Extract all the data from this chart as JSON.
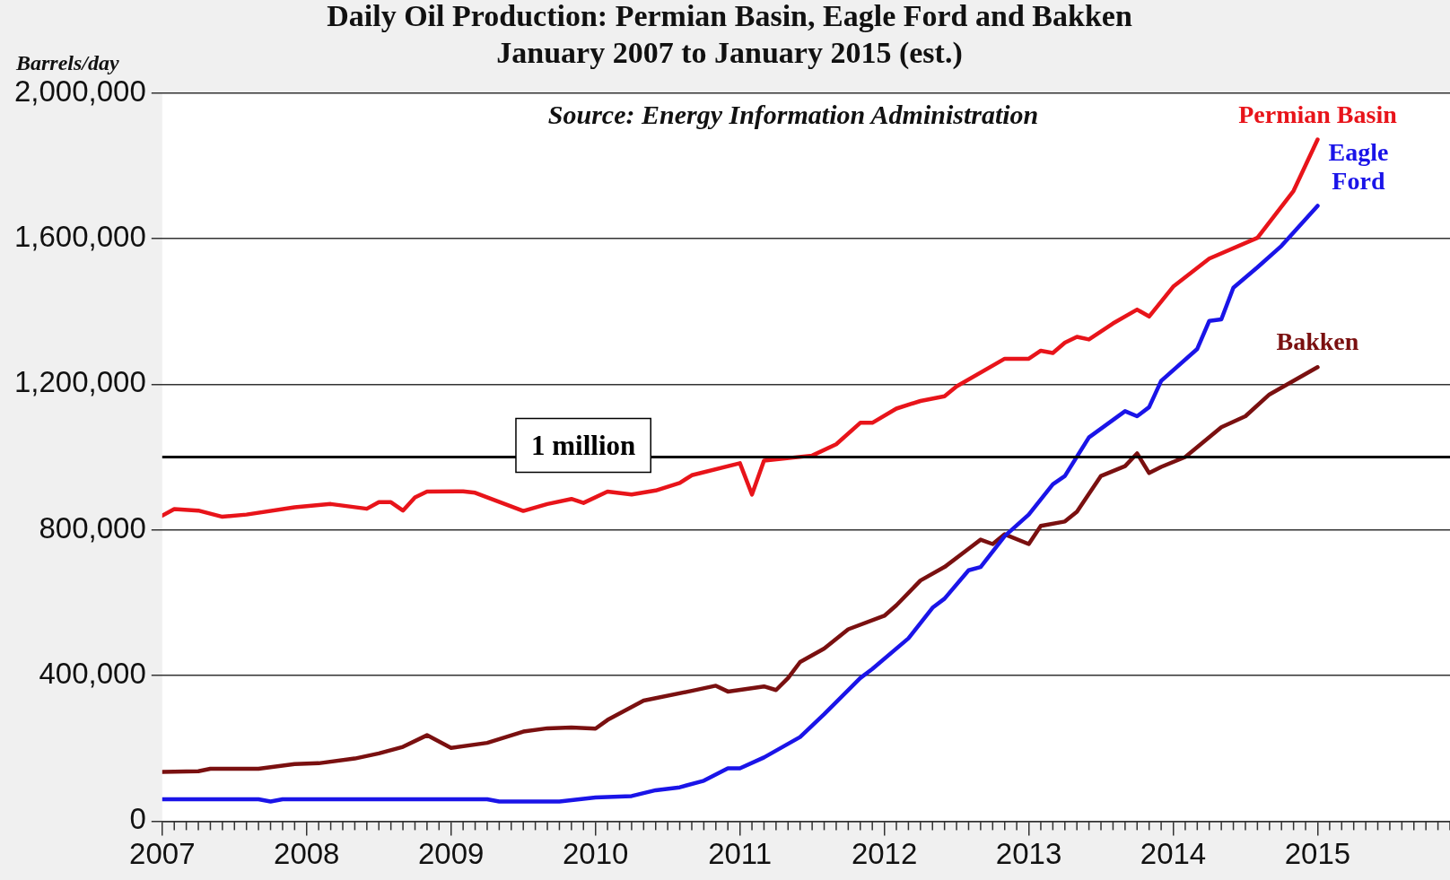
{
  "chart_data": {
    "type": "line",
    "title": "Daily Oil Production: Permian Basin, Eagle Ford and Bakken",
    "subtitle": "January 2007 to January 2015 (est.)",
    "ylabel": "Barrels/day",
    "annotations": [
      "Source: Energy Information Administration"
    ],
    "xlim": [
      "2007",
      "2015-12"
    ],
    "xticks": [
      {
        "value": "2007",
        "label": "2007"
      },
      {
        "value": "2008",
        "label": "2008"
      },
      {
        "value": "2009",
        "label": "2009"
      },
      {
        "value": "2010",
        "label": "2010"
      },
      {
        "value": "2011",
        "label": "2011"
      },
      {
        "value": "2012",
        "label": "2012"
      },
      {
        "value": "2013",
        "label": "2013"
      },
      {
        "value": "2014",
        "label": "2014"
      },
      {
        "value": "2015",
        "label": "2015"
      }
    ],
    "ylim": [
      0,
      2000000
    ],
    "yticks": [
      {
        "value": 0,
        "label": "0"
      },
      {
        "value": 400000,
        "label": "400,000"
      },
      {
        "value": 800000,
        "label": "800,000"
      },
      {
        "value": 1200000,
        "label": "1,200,000"
      },
      {
        "value": 1600000,
        "label": "1,600,000"
      },
      {
        "value": 2000000,
        "label": "2,000,000"
      }
    ],
    "grid": "y",
    "legend": false,
    "marker": "none",
    "line_style": "solid",
    "ref_lines": [
      {
        "axis": "y",
        "value": 1000000,
        "label": "1 million",
        "color": "#000000"
      }
    ],
    "series": [
      {
        "name": "Permian Basin",
        "color": "#e8141a",
        "x": [
          "2007-01",
          "2007-02",
          "2007-04",
          "2007-06",
          "2007-08",
          "2007-12",
          "2008-03",
          "2008-06",
          "2008-07",
          "2008-08",
          "2008-09",
          "2008-10",
          "2008-11",
          "2009-02",
          "2009-03",
          "2009-07",
          "2009-09",
          "2009-11",
          "2009-12",
          "2010-02",
          "2010-04",
          "2010-06",
          "2010-08",
          "2010-09",
          "2011-01",
          "2011-02",
          "2011-03",
          "2011-07",
          "2011-09",
          "2011-11",
          "2011-12",
          "2012-02",
          "2012-04",
          "2012-06",
          "2012-07",
          "2012-11",
          "2013-01",
          "2013-02",
          "2013-03",
          "2013-04",
          "2013-05",
          "2013-06",
          "2013-08",
          "2013-10",
          "2013-11",
          "2014-01",
          "2014-04",
          "2014-08",
          "2014-11",
          "2015-01"
        ],
        "values": [
          839000,
          857000,
          853000,
          836000,
          842000,
          862000,
          871000,
          858000,
          876000,
          876000,
          853000,
          889000,
          905000,
          906000,
          902000,
          852000,
          871000,
          885000,
          874000,
          905000,
          897000,
          908000,
          929000,
          950000,
          983000,
          897000,
          990000,
          1004000,
          1035000,
          1094000,
          1094000,
          1133000,
          1154000,
          1167000,
          1194000,
          1270000,
          1270000,
          1292000,
          1286000,
          1314000,
          1330000,
          1323000,
          1367000,
          1405000,
          1386000,
          1468000,
          1545000,
          1602000,
          1731000,
          1872000
        ]
      },
      {
        "name": "Eagle Ford",
        "color": "#1a14e8",
        "x": [
          "2007-01",
          "2007-09",
          "2007-10",
          "2007-11",
          "2009-04",
          "2009-05",
          "2009-10",
          "2010-01",
          "2010-04",
          "2010-06",
          "2010-08",
          "2010-10",
          "2010-12",
          "2011-01",
          "2011-03",
          "2011-06",
          "2011-08",
          "2011-11",
          "2011-12",
          "2012-03",
          "2012-05",
          "2012-06",
          "2012-08",
          "2012-09",
          "2012-11",
          "2013-01",
          "2013-03",
          "2013-04",
          "2013-06",
          "2013-09",
          "2013-10",
          "2013-11",
          "2013-12",
          "2014-03",
          "2014-04",
          "2014-05",
          "2014-06",
          "2014-08",
          "2014-10",
          "2015-01"
        ],
        "values": [
          60000,
          60000,
          54000,
          60000,
          60000,
          54000,
          54000,
          65000,
          69000,
          85000,
          93000,
          111000,
          145000,
          145000,
          175000,
          231000,
          294000,
          393000,
          418000,
          502000,
          586000,
          611000,
          689000,
          698000,
          783000,
          842000,
          925000,
          948000,
          1054000,
          1126000,
          1112000,
          1137000,
          1209000,
          1297000,
          1374000,
          1378000,
          1465000,
          1521000,
          1580000,
          1690000
        ]
      },
      {
        "name": "Bakken",
        "color": "#7a1010",
        "x": [
          "2007-01",
          "2007-04",
          "2007-05",
          "2007-09",
          "2007-12",
          "2008-02",
          "2008-05",
          "2008-07",
          "2008-09",
          "2008-11",
          "2009-01",
          "2009-04",
          "2009-07",
          "2009-09",
          "2009-11",
          "2010-01",
          "2010-02",
          "2010-05",
          "2010-09",
          "2010-11",
          "2010-12",
          "2011-03",
          "2011-04",
          "2011-05",
          "2011-06",
          "2011-08",
          "2011-10",
          "2012-01",
          "2012-02",
          "2012-04",
          "2012-06",
          "2012-08",
          "2012-09",
          "2012-10",
          "2012-11",
          "2013-01",
          "2013-02",
          "2013-04",
          "2013-05",
          "2013-07",
          "2013-09",
          "2013-10",
          "2013-11",
          "2013-12",
          "2014-02",
          "2014-05",
          "2014-07",
          "2014-09",
          "2015-01"
        ],
        "values": [
          135000,
          137000,
          144000,
          144000,
          157000,
          159000,
          172000,
          186000,
          204000,
          236000,
          201000,
          215000,
          246000,
          255000,
          257000,
          254000,
          278000,
          331000,
          358000,
          372000,
          356000,
          370000,
          360000,
          393000,
          437000,
          474000,
          527000,
          564000,
          593000,
          661000,
          698000,
          748000,
          773000,
          761000,
          788000,
          761000,
          811000,
          823000,
          850000,
          948000,
          975000,
          1010000,
          956000,
          973000,
          1000000,
          1082000,
          1112000,
          1172000,
          1247000
        ]
      }
    ]
  }
}
